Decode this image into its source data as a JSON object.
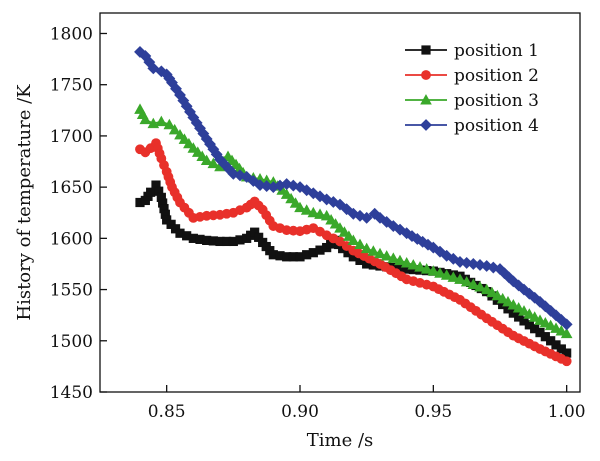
{
  "chart_data": {
    "type": "line",
    "title": "",
    "xlabel": "Time /s",
    "ylabel": "History of temperature /K",
    "xlim": [
      0.825,
      1.005
    ],
    "ylim": [
      1450,
      1820
    ],
    "xticks": [
      0.85,
      0.9,
      0.95,
      1.0
    ],
    "xtick_labels": [
      "0.85",
      "0.90",
      "0.95",
      "1.00"
    ],
    "yticks": [
      1450,
      1500,
      1550,
      1600,
      1650,
      1700,
      1750,
      1800
    ],
    "ytick_labels": [
      "1450",
      "1500",
      "1550",
      "1600",
      "1650",
      "1700",
      "1750",
      "1800"
    ],
    "grid": false,
    "legend_position": "top-right",
    "series": [
      {
        "name": "position 1",
        "color": "#111111",
        "marker": "square",
        "x": [
          0.84,
          0.842,
          0.844,
          0.846,
          0.848,
          0.85,
          0.855,
          0.86,
          0.865,
          0.87,
          0.875,
          0.88,
          0.883,
          0.886,
          0.89,
          0.895,
          0.9,
          0.905,
          0.91,
          0.913,
          0.916,
          0.92,
          0.925,
          0.93,
          0.94,
          0.95,
          0.96,
          0.97,
          0.98,
          0.99,
          1.0
        ],
        "values": [
          1635,
          1637,
          1645,
          1652,
          1640,
          1618,
          1605,
          1600,
          1598,
          1597,
          1597,
          1600,
          1606,
          1596,
          1584,
          1582,
          1582,
          1586,
          1591,
          1598,
          1590,
          1582,
          1575,
          1573,
          1570,
          1568,
          1563,
          1548,
          1527,
          1508,
          1488
        ]
      },
      {
        "name": "position 2",
        "color": "#e8302a",
        "marker": "circle",
        "x": [
          0.84,
          0.842,
          0.844,
          0.846,
          0.848,
          0.85,
          0.852,
          0.855,
          0.86,
          0.865,
          0.87,
          0.875,
          0.88,
          0.883,
          0.886,
          0.89,
          0.895,
          0.9,
          0.905,
          0.91,
          0.915,
          0.92,
          0.93,
          0.94,
          0.95,
          0.96,
          0.97,
          0.98,
          0.99,
          1.0
        ],
        "values": [
          1687,
          1684,
          1688,
          1693,
          1678,
          1665,
          1650,
          1635,
          1620,
          1622,
          1623,
          1625,
          1630,
          1636,
          1628,
          1612,
          1608,
          1607,
          1610,
          1603,
          1597,
          1588,
          1575,
          1560,
          1553,
          1540,
          1522,
          1505,
          1492,
          1480
        ]
      },
      {
        "name": "position 3",
        "color": "#3aa82a",
        "marker": "triangle",
        "x": [
          0.84,
          0.842,
          0.845,
          0.848,
          0.851,
          0.855,
          0.86,
          0.865,
          0.87,
          0.873,
          0.876,
          0.88,
          0.885,
          0.89,
          0.895,
          0.9,
          0.905,
          0.91,
          0.915,
          0.92,
          0.925,
          0.93,
          0.94,
          0.95,
          0.96,
          0.97,
          0.98,
          0.99,
          1.0
        ],
        "values": [
          1726,
          1716,
          1712,
          1714,
          1711,
          1701,
          1688,
          1676,
          1670,
          1680,
          1672,
          1660,
          1658,
          1655,
          1643,
          1630,
          1625,
          1622,
          1610,
          1598,
          1590,
          1585,
          1576,
          1568,
          1560,
          1550,
          1535,
          1520,
          1507
        ]
      },
      {
        "name": "position 4",
        "color": "#2e3f9a",
        "marker": "diamond",
        "x": [
          0.84,
          0.842,
          0.845,
          0.848,
          0.85,
          0.852,
          0.855,
          0.86,
          0.865,
          0.87,
          0.875,
          0.88,
          0.885,
          0.89,
          0.895,
          0.9,
          0.905,
          0.91,
          0.915,
          0.92,
          0.925,
          0.928,
          0.93,
          0.935,
          0.94,
          0.95,
          0.955,
          0.96,
          0.965,
          0.97,
          0.975,
          0.98,
          0.99,
          1.0
        ],
        "values": [
          1782,
          1778,
          1766,
          1763,
          1760,
          1752,
          1740,
          1718,
          1697,
          1677,
          1663,
          1660,
          1652,
          1650,
          1653,
          1650,
          1644,
          1638,
          1633,
          1624,
          1620,
          1624,
          1620,
          1612,
          1605,
          1591,
          1583,
          1577,
          1575,
          1573,
          1570,
          1558,
          1538,
          1516
        ]
      }
    ]
  }
}
